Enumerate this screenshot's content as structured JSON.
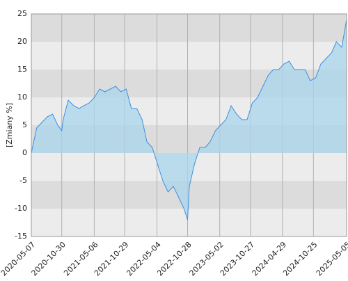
{
  "chart_data": {
    "type": "area",
    "y_label": "[Zmiany %]",
    "x": [
      "2020-05-07",
      "2020-06-07",
      "2020-07-07",
      "2020-08-07",
      "2020-09-07",
      "2020-10-07",
      "2020-10-30",
      "2020-11-07",
      "2020-12-07",
      "2021-01-07",
      "2021-02-07",
      "2021-03-07",
      "2021-04-07",
      "2021-05-07",
      "2021-06-07",
      "2021-07-07",
      "2021-08-07",
      "2021-09-07",
      "2021-10-07",
      "2021-11-07",
      "2021-12-07",
      "2022-01-07",
      "2022-02-07",
      "2022-03-07",
      "2022-04-07",
      "2022-05-07",
      "2022-06-07",
      "2022-07-07",
      "2022-08-07",
      "2022-09-07",
      "2022-10-07",
      "2022-10-28",
      "2022-11-07",
      "2022-12-07",
      "2023-01-07",
      "2023-02-07",
      "2023-03-07",
      "2023-04-07",
      "2023-05-07",
      "2023-06-07",
      "2023-07-07",
      "2023-08-07",
      "2023-09-07",
      "2023-10-07",
      "2023-11-07",
      "2023-12-07",
      "2024-01-07",
      "2024-02-07",
      "2024-03-07",
      "2024-04-07",
      "2024-05-07",
      "2024-06-07",
      "2024-07-07",
      "2024-08-07",
      "2024-09-07",
      "2024-10-07",
      "2024-11-07",
      "2024-12-07",
      "2025-01-07",
      "2025-02-07",
      "2025-03-07",
      "2025-04-07",
      "2025-05-05"
    ],
    "series": [
      {
        "color": "#3d8fe0",
        "fill": "#a9d6ec",
        "values": [
          0,
          4.5,
          5.5,
          6.5,
          7,
          5,
          4,
          6,
          9.5,
          8.5,
          8,
          8.5,
          9,
          10,
          11.5,
          11,
          11.5,
          12,
          11,
          11.5,
          8,
          8,
          6,
          2,
          1,
          -2,
          -5,
          -7,
          -6,
          -8,
          -10,
          -12,
          -6,
          -2,
          1,
          1,
          2,
          4,
          5,
          6,
          8.5,
          7,
          6,
          6,
          9,
          10,
          12,
          14,
          15,
          15,
          16,
          16.5,
          15,
          15,
          15,
          13,
          13.5,
          16,
          17,
          18,
          20,
          19,
          24
        ]
      }
    ],
    "xlim": [
      "2020-05-07",
      "2025-05-05"
    ],
    "xticks": [
      "2020-05-07",
      "2020-10-30",
      "2021-05-06",
      "2021-10-29",
      "2022-05-04",
      "2022-10-28",
      "2023-05-02",
      "2023-10-27",
      "2024-04-29",
      "2024-10-25",
      "2025-05-05"
    ],
    "ylim": [
      -15,
      25
    ],
    "yticks": [
      -15,
      -10,
      -5,
      0,
      5,
      10,
      15,
      20,
      25
    ],
    "band_colors": [
      "#ececec",
      "#dcdcdc"
    ],
    "grid": true
  }
}
